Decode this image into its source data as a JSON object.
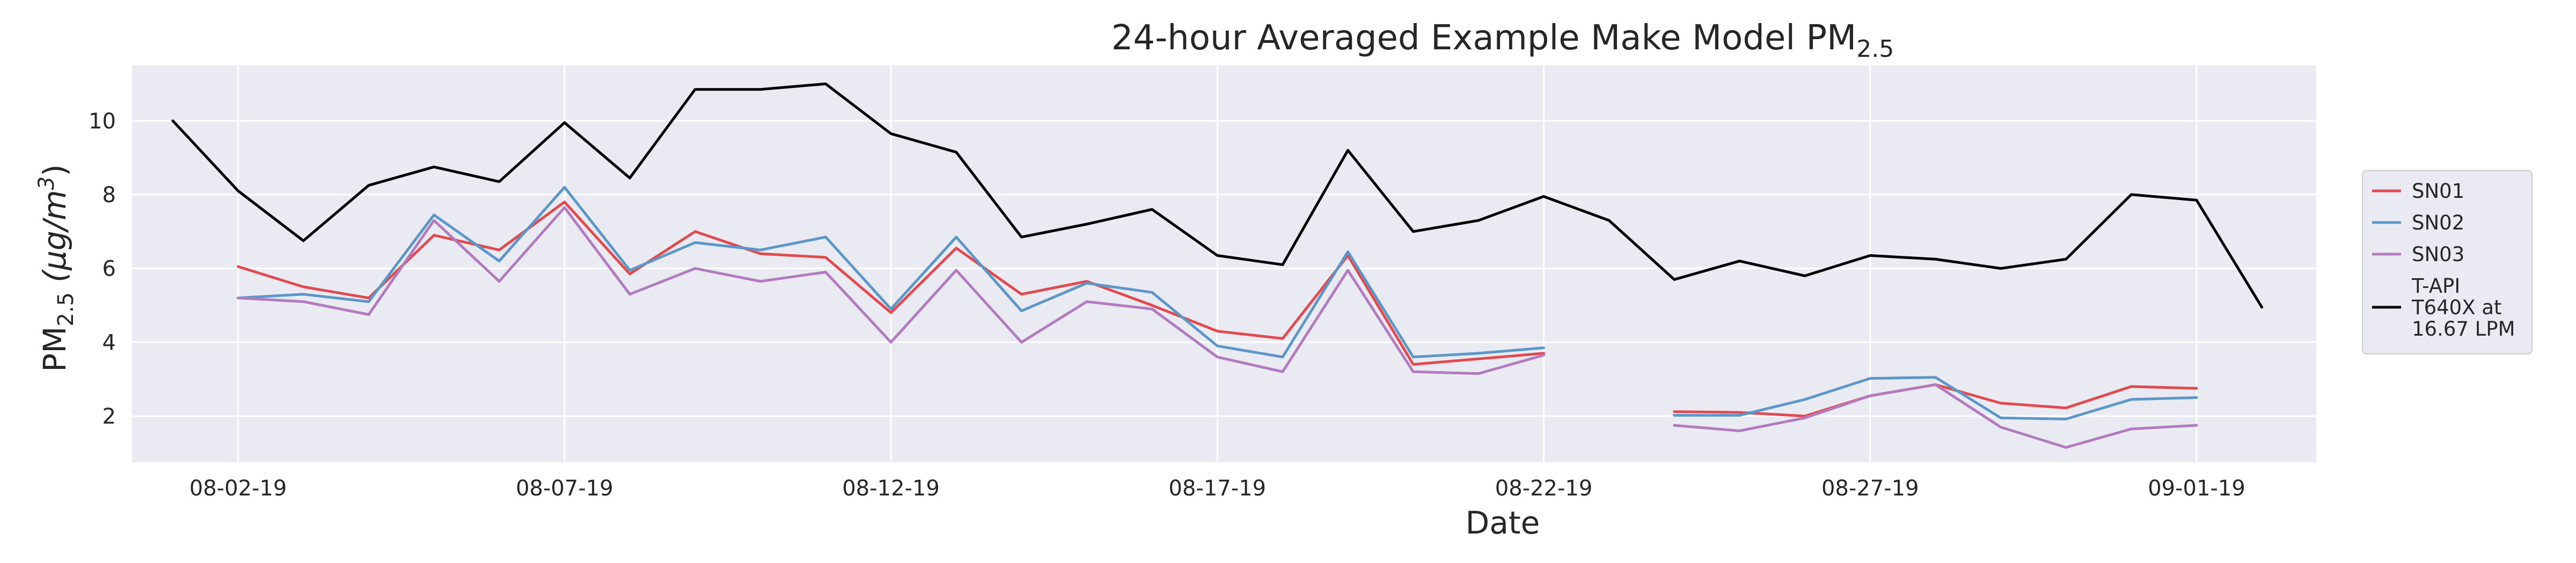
{
  "chart_data": {
    "type": "line",
    "title": "24-hour Averaged Example Make Model PM",
    "title_subscript": "2.5",
    "xlabel": "Date",
    "ylabel_main": "PM",
    "ylabel_subscript": "2.5",
    "ylabel_unit_open": " (μg/m",
    "ylabel_unit_sup": "3",
    "ylabel_unit_close": ")",
    "x_is_date": true,
    "x": [
      "2019-08-01",
      "2019-08-02",
      "2019-08-03",
      "2019-08-04",
      "2019-08-05",
      "2019-08-06",
      "2019-08-07",
      "2019-08-08",
      "2019-08-09",
      "2019-08-10",
      "2019-08-11",
      "2019-08-12",
      "2019-08-13",
      "2019-08-14",
      "2019-08-15",
      "2019-08-16",
      "2019-08-17",
      "2019-08-18",
      "2019-08-19",
      "2019-08-20",
      "2019-08-21",
      "2019-08-22",
      "2019-08-23",
      "2019-08-24",
      "2019-08-25",
      "2019-08-26",
      "2019-08-27",
      "2019-08-28",
      "2019-08-29",
      "2019-08-30",
      "2019-08-31",
      "2019-09-01",
      "2019-09-02"
    ],
    "xlim": [
      "2019-07-31T09:00",
      "2019-09-02T20:00"
    ],
    "ylim": [
      0.75,
      11.5
    ],
    "xticks": [
      {
        "date": "2019-08-02",
        "label": "08-02-19"
      },
      {
        "date": "2019-08-07",
        "label": "08-07-19"
      },
      {
        "date": "2019-08-12",
        "label": "08-12-19"
      },
      {
        "date": "2019-08-17",
        "label": "08-17-19"
      },
      {
        "date": "2019-08-22",
        "label": "08-22-19"
      },
      {
        "date": "2019-08-27",
        "label": "08-27-19"
      },
      {
        "date": "2019-09-01",
        "label": "09-01-19"
      }
    ],
    "yticks": [
      {
        "value": 2,
        "label": "2"
      },
      {
        "value": 4,
        "label": "4"
      },
      {
        "value": 6,
        "label": "6"
      },
      {
        "value": 8,
        "label": "8"
      },
      {
        "value": 10,
        "label": "10"
      }
    ],
    "grid": true,
    "legend_position": "right",
    "colors": {
      "background": "#EAEAF2",
      "grid": "#FFFFFF",
      "text": "#262626"
    },
    "series": [
      {
        "name": "SN01",
        "color": "#E24A4F",
        "values": [
          null,
          6.05,
          5.5,
          5.2,
          6.9,
          6.5,
          7.8,
          5.85,
          7.0,
          6.4,
          6.3,
          4.8,
          6.55,
          5.3,
          5.65,
          5.0,
          4.3,
          4.1,
          6.35,
          3.4,
          3.55,
          3.7,
          null,
          2.12,
          2.1,
          2.0,
          2.55,
          2.85,
          2.35,
          2.22,
          2.8,
          2.75,
          null
        ]
      },
      {
        "name": "SN02",
        "color": "#5B97C9",
        "values": [
          null,
          5.2,
          5.3,
          5.1,
          7.45,
          6.2,
          8.2,
          5.95,
          6.7,
          6.5,
          6.85,
          4.9,
          6.85,
          4.85,
          5.6,
          5.35,
          3.9,
          3.6,
          6.45,
          3.6,
          3.7,
          3.85,
          null,
          2.02,
          2.02,
          2.45,
          3.02,
          3.05,
          1.95,
          1.92,
          2.45,
          2.5,
          null
        ]
      },
      {
        "name": "SN03",
        "color": "#B27BC0",
        "values": [
          null,
          5.2,
          5.1,
          4.75,
          7.3,
          5.65,
          7.65,
          5.3,
          6.0,
          5.65,
          5.9,
          4.0,
          5.95,
          4.0,
          5.1,
          4.9,
          3.6,
          3.2,
          5.95,
          3.2,
          3.15,
          3.65,
          null,
          1.75,
          1.6,
          1.95,
          2.55,
          2.85,
          1.7,
          1.15,
          1.65,
          1.75,
          null
        ]
      },
      {
        "name_lines": [
          "T-API",
          "T640X at",
          "16.67 LPM"
        ],
        "color": "#000000",
        "values": [
          10.0,
          8.1,
          6.75,
          8.25,
          8.75,
          8.35,
          9.95,
          8.45,
          10.85,
          10.85,
          11.0,
          9.65,
          9.15,
          6.85,
          7.2,
          7.6,
          6.35,
          6.1,
          9.2,
          7.0,
          7.3,
          7.95,
          7.3,
          5.7,
          6.2,
          5.8,
          6.35,
          6.25,
          6.0,
          6.25,
          8.0,
          7.85,
          4.95
        ]
      }
    ]
  }
}
